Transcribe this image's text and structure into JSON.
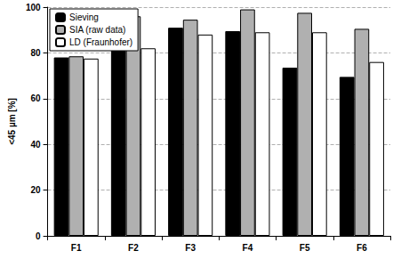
{
  "chart_data": {
    "type": "bar",
    "y_label": "<45 µm [%]",
    "categories": [
      "F1",
      "F2",
      "F3",
      "F4",
      "F5",
      "F6"
    ],
    "series": [
      {
        "name": "Sieving",
        "color": "#000000",
        "values": [
          78,
          81,
          91,
          89.5,
          73.5,
          69.5
        ]
      },
      {
        "name": "SIA (raw data)",
        "color": "#b0b0b0",
        "values": [
          78.5,
          96,
          94.5,
          99,
          97.5,
          90.5
        ]
      },
      {
        "name": "LD (Fraunhofer)",
        "color": "#ffffff",
        "values": [
          77.5,
          82,
          88,
          89,
          89,
          76
        ]
      }
    ],
    "ylim": [
      0,
      100
    ],
    "yticks": [
      0,
      20,
      40,
      60,
      80,
      100
    ],
    "grid": true,
    "legend": "upper left"
  }
}
